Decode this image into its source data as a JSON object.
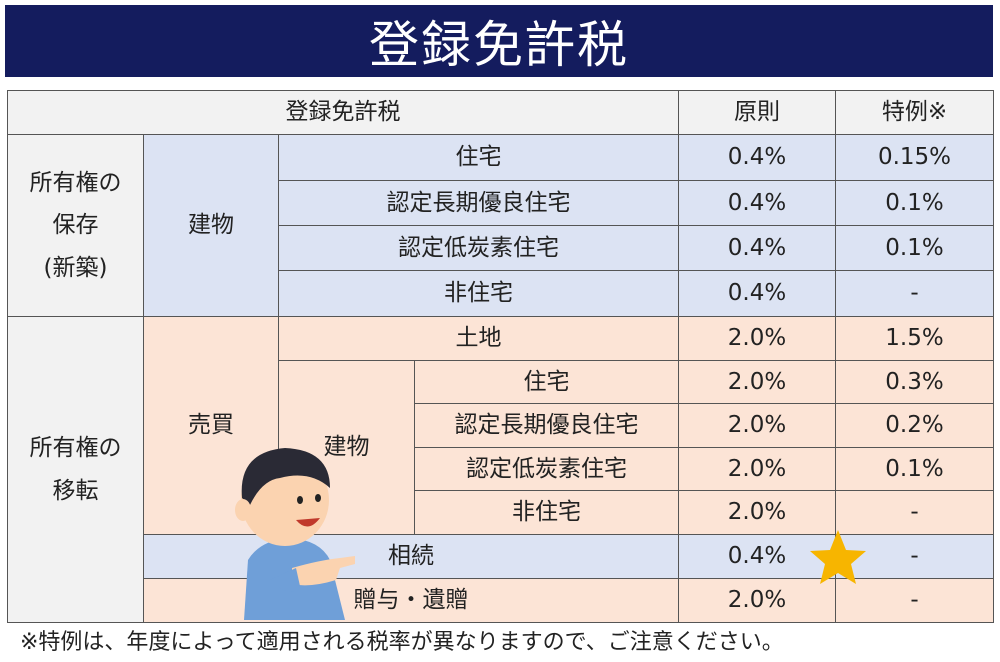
{
  "header": {
    "title": "登録免許税"
  },
  "table": {
    "header": [
      "登録免許税",
      "原則",
      "特例※"
    ],
    "row_groups": [
      {
        "lines": [
          "所有権の",
          "保存",
          "(新築)"
        ]
      },
      {
        "lines": [
          "所有権の",
          "移転"
        ]
      }
    ],
    "sub_groups": [
      "建物",
      "売買",
      "建物"
    ],
    "rows": [
      {
        "item": "住宅",
        "base": "0.4%",
        "special": "0.15%"
      },
      {
        "item": "認定長期優良住宅",
        "base": "0.4%",
        "special": "0.1%"
      },
      {
        "item": "認定低炭素住宅",
        "base": "0.4%",
        "special": "0.1%"
      },
      {
        "item": "非住宅",
        "base": "0.4%",
        "special": "-"
      },
      {
        "item": "土地",
        "base": "2.0%",
        "special": "1.5%"
      },
      {
        "item": "住宅",
        "base": "2.0%",
        "special": "0.3%"
      },
      {
        "item": "認定長期優良住宅",
        "base": "2.0%",
        "special": "0.2%"
      },
      {
        "item": "認定低炭素住宅",
        "base": "2.0%",
        "special": "0.1%"
      },
      {
        "item": "非住宅",
        "base": "2.0%",
        "special": "-"
      },
      {
        "item": "相続",
        "base": "0.4%",
        "special": "-"
      },
      {
        "item": "贈与・遺贈",
        "base": "2.0%",
        "special": "-"
      }
    ]
  },
  "footnote": "※特例は、年度によって適用される税率が異なりますので、ご注意ください。"
}
